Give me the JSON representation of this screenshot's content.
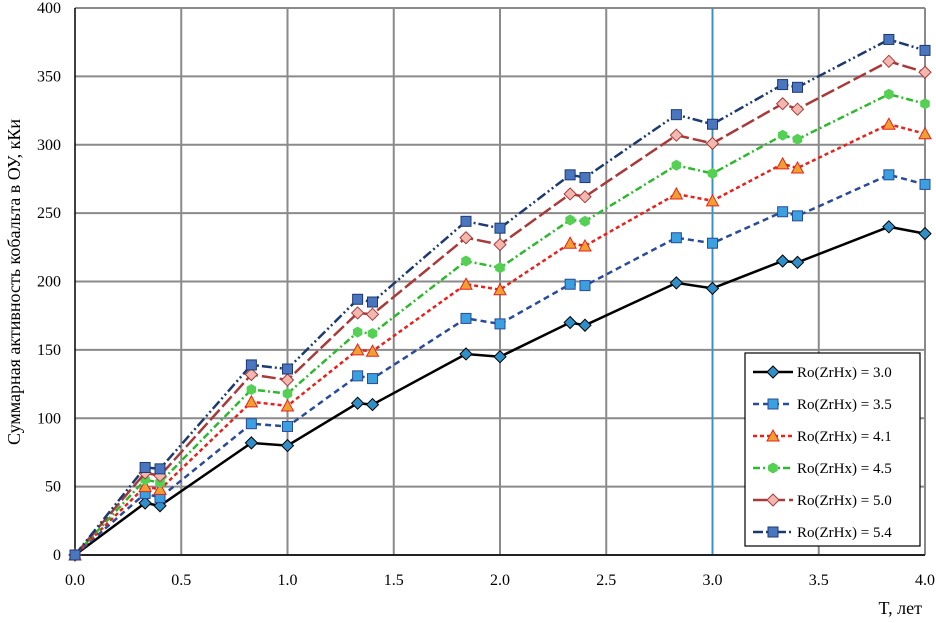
{
  "chart_data": {
    "type": "line",
    "xlabel": "T, лет",
    "ylabel": "Суммарная  активность кобальта в ОУ, кКи",
    "xlim": [
      0,
      4
    ],
    "ylim": [
      0,
      400
    ],
    "x_ticks": [
      "0.0",
      "0.5",
      "1.0",
      "1.5",
      "2.0",
      "2.5",
      "3.0",
      "3.5",
      "4.0"
    ],
    "y_ticks": [
      "0",
      "50",
      "100",
      "150",
      "200",
      "250",
      "300",
      "350",
      "400"
    ],
    "grid": true,
    "legend_position": "bottom-right",
    "series": [
      {
        "name": "Ro(ZrHx) = 3.0",
        "color": "#000000",
        "dash": "solid",
        "marker": "diamond",
        "marker_color": "#2f8fc8",
        "x": [
          0,
          0.33,
          0.4,
          0.83,
          1.0,
          1.33,
          1.4,
          1.84,
          2.0,
          2.33,
          2.4,
          2.83,
          3.0,
          3.33,
          3.4,
          3.83,
          4.0
        ],
        "y": [
          0,
          38,
          36,
          82,
          80,
          111,
          110,
          147,
          145,
          170,
          168,
          199,
          195,
          215,
          214,
          240,
          235
        ]
      },
      {
        "name": "Ro(ZrHx) = 3.5",
        "color": "#2a4a9a",
        "dash": "6,4",
        "marker": "square",
        "marker_color": "#3aa0e0",
        "x": [
          0,
          0.33,
          0.4,
          0.83,
          1.0,
          1.33,
          1.4,
          1.84,
          2.0,
          2.33,
          2.4,
          2.83,
          3.0,
          3.33,
          3.4,
          3.83,
          4.0
        ],
        "y": [
          0,
          45,
          42,
          96,
          94,
          131,
          129,
          173,
          169,
          198,
          197,
          232,
          228,
          251,
          248,
          278,
          271
        ]
      },
      {
        "name": "Ro(ZrHx) = 4.1",
        "color": "#e8211d",
        "dash": "4,3",
        "marker": "triangle",
        "marker_color": "#f0a030",
        "x": [
          0,
          0.33,
          0.4,
          0.83,
          1.0,
          1.33,
          1.4,
          1.84,
          2.0,
          2.33,
          2.4,
          2.83,
          3.0,
          3.33,
          3.4,
          3.83,
          4.0
        ],
        "y": [
          0,
          50,
          48,
          112,
          109,
          150,
          149,
          198,
          194,
          228,
          226,
          264,
          259,
          286,
          283,
          315,
          308
        ]
      },
      {
        "name": "Ro(ZrHx) = 4.5",
        "color": "#2eb82e",
        "dash": "7,3,2,3",
        "marker": "hexagon",
        "marker_color": "#55d055",
        "x": [
          0,
          0.33,
          0.4,
          0.83,
          1.0,
          1.33,
          1.4,
          1.84,
          2.0,
          2.33,
          2.4,
          2.83,
          3.0,
          3.33,
          3.4,
          3.83,
          4.0
        ],
        "y": [
          0,
          55,
          53,
          121,
          118,
          163,
          162,
          215,
          210,
          245,
          244,
          285,
          279,
          307,
          304,
          337,
          330
        ]
      },
      {
        "name": "Ro(ZrHx) = 5.0",
        "color": "#a83a3a",
        "dash": "14,4",
        "marker": "diamond",
        "marker_color": "#f2b8b0",
        "x": [
          0,
          0.33,
          0.4,
          0.83,
          1.0,
          1.33,
          1.4,
          1.84,
          2.0,
          2.33,
          2.4,
          2.83,
          3.0,
          3.33,
          3.4,
          3.83,
          4.0
        ],
        "y": [
          0,
          60,
          58,
          132,
          128,
          177,
          176,
          232,
          227,
          264,
          262,
          307,
          301,
          330,
          326,
          361,
          353
        ]
      },
      {
        "name": "Ro(ZrHx) = 5.4",
        "color": "#1d3a70",
        "dash": "10,3,2,3,2,3",
        "marker": "square",
        "marker_color": "#4a76c0",
        "x": [
          0,
          0.33,
          0.4,
          0.83,
          1.0,
          1.33,
          1.4,
          1.84,
          2.0,
          2.33,
          2.4,
          2.83,
          3.0,
          3.33,
          3.4,
          3.83,
          4.0
        ],
        "y": [
          0,
          64,
          63,
          139,
          136,
          187,
          185,
          244,
          239,
          278,
          276,
          322,
          315,
          344,
          342,
          377,
          369
        ]
      }
    ]
  }
}
